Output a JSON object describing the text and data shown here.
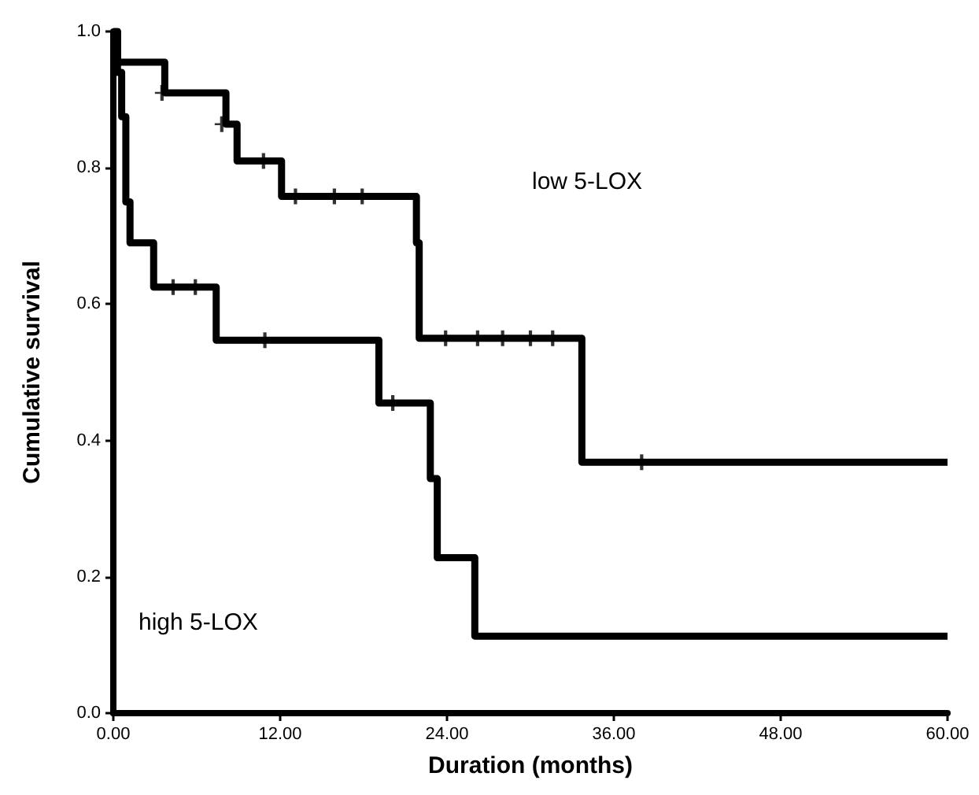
{
  "chart_data": {
    "type": "step",
    "xlabel": "Duration (months)",
    "ylabel": "Cumulative survival",
    "xlim": [
      0,
      60
    ],
    "ylim": [
      0,
      1
    ],
    "xticks": [
      {
        "value": 0,
        "label": "0.00"
      },
      {
        "value": 12,
        "label": "12.00"
      },
      {
        "value": 24,
        "label": "24.00"
      },
      {
        "value": 36,
        "label": "36.00"
      },
      {
        "value": 48,
        "label": "48.00"
      },
      {
        "value": 60,
        "label": "60.00"
      }
    ],
    "yticks": [
      {
        "value": 0,
        "label": "0.0"
      },
      {
        "value": 0.2,
        "label": "0.2"
      },
      {
        "value": 0.4,
        "label": "0.4"
      },
      {
        "value": 0.6,
        "label": "0.6"
      },
      {
        "value": 0.8,
        "label": "0.8"
      },
      {
        "value": 1,
        "label": "1.0"
      }
    ],
    "grid": false,
    "series": [
      {
        "color": "#000000",
        "x": [
          0,
          0.3,
          3.7,
          8.1,
          8.9,
          12.1,
          21.8,
          22,
          33.7,
          60
        ],
        "values": [
          1,
          0.955,
          0.91,
          0.864,
          0.81,
          0.758,
          0.69,
          0.55,
          0.368,
          0.368
        ]
      },
      {
        "color": "#000000",
        "x": [
          0,
          0.3,
          0.6,
          0.9,
          1.2,
          2.9,
          7.4,
          19.1,
          22.8,
          23.3,
          26,
          60
        ],
        "values": [
          1,
          0.94,
          0.875,
          0.75,
          0.69,
          0.625,
          0.547,
          0.455,
          0.344,
          0.228,
          0.113,
          0.113
        ]
      },
      {
        "type": "scatter",
        "marker": "cross",
        "color": "#000000",
        "x": [
          3.5,
          7.8,
          10.8,
          13.1,
          15.9,
          17.9,
          23.9,
          26.2,
          28,
          30,
          31.6,
          38
        ],
        "values": [
          0.91,
          0.864,
          0.81,
          0.758,
          0.758,
          0.758,
          0.55,
          0.55,
          0.55,
          0.55,
          0.55,
          0.368
        ]
      },
      {
        "type": "scatter",
        "marker": "cross",
        "color": "#000000",
        "x": [
          4.3,
          5.9,
          10.9,
          20.1
        ],
        "values": [
          0.625,
          0.625,
          0.547,
          0.455
        ]
      }
    ],
    "annotations": [
      "low 5-LOX",
      "high 5-LOX"
    ]
  }
}
